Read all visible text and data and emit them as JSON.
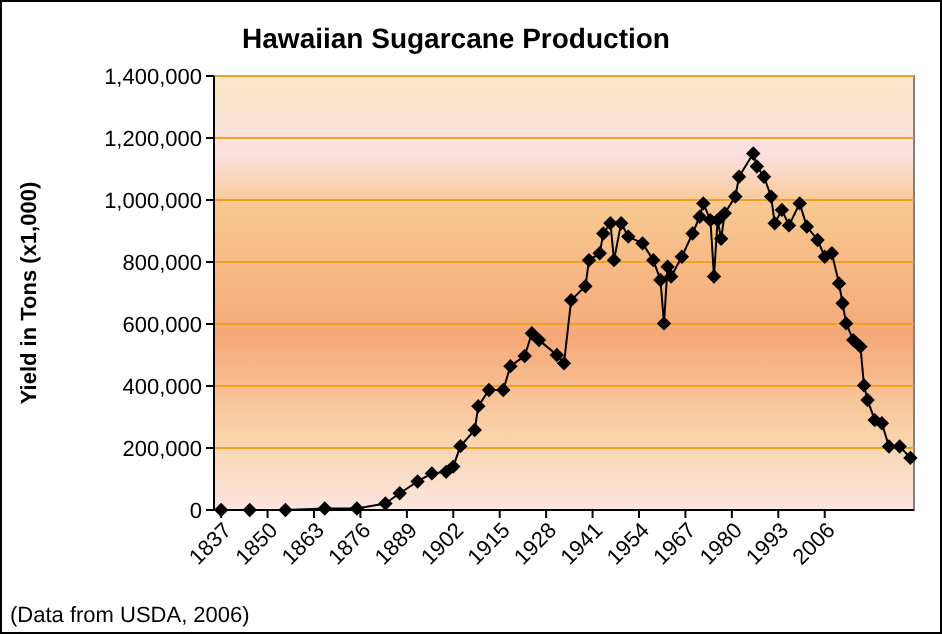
{
  "chart_data": {
    "type": "line",
    "title": "Hawaiian Sugarcane Production",
    "ylabel": "Yield in Tons (x1,000)",
    "annotations": [
      "(Data from USDA, 2006)"
    ],
    "series": [
      {
        "color": "#000000",
        "x": [
          1837,
          1845,
          1855,
          1866,
          1875,
          1883,
          1887,
          1892,
          1896,
          1900,
          1902,
          1904,
          1908,
          1909,
          1912,
          1916,
          1918,
          1922,
          1924,
          1926,
          1931,
          1933,
          1935,
          1939,
          1940,
          1943,
          1944,
          1946,
          1947,
          1949,
          1951,
          1955,
          1958,
          1960,
          1961,
          1962,
          1963,
          1966,
          1969,
          1971,
          1972,
          1974,
          1975,
          1976,
          1977,
          1978,
          1981,
          1982,
          1986,
          1987,
          1989,
          1991,
          1992,
          1994,
          1996,
          1999,
          2001,
          2004,
          2006,
          2008,
          2010,
          2011,
          2012,
          2014,
          2016,
          2017,
          2018,
          2020,
          2022,
          2024,
          2027,
          2030
        ],
        "values": [
          0,
          0,
          0,
          5000,
          5000,
          21000,
          54000,
          92000,
          118000,
          123000,
          140000,
          206000,
          258000,
          335000,
          387000,
          387000,
          464000,
          497000,
          570000,
          548000,
          500000,
          473000,
          677000,
          722000,
          806000,
          828000,
          892000,
          925000,
          806000,
          925000,
          882000,
          860000,
          806000,
          742000,
          602000,
          785000,
          753000,
          817000,
          892000,
          946000,
          989000,
          935000,
          753000,
          935000,
          875000,
          957000,
          1011000,
          1075000,
          1150000,
          1108000,
          1075000,
          1011000,
          925000,
          968000,
          918000,
          989000,
          914000,
          871000,
          817000,
          828000,
          731000,
          667000,
          602000,
          548000,
          527000,
          402000,
          355000,
          290000,
          280000,
          205000,
          205000,
          168000
        ]
      }
    ],
    "xlim": [
      1835,
      2031
    ],
    "xticks": [
      1837,
      1850,
      1863,
      1876,
      1889,
      1902,
      1915,
      1928,
      1941,
      1954,
      1967,
      1980,
      1993,
      2006
    ],
    "ylim": [
      0,
      1400000
    ],
    "yticks": [
      {
        "value": 0,
        "label": "0"
      },
      {
        "value": 200000,
        "label": "200,000"
      },
      {
        "value": 400000,
        "label": "400,000"
      },
      {
        "value": 600000,
        "label": "600,000"
      },
      {
        "value": 800000,
        "label": "800,000"
      },
      {
        "value": 1000000,
        "label": "1,000,000"
      },
      {
        "value": 1200000,
        "label": "1,200,000"
      },
      {
        "value": 1400000,
        "label": "1,400,000"
      }
    ],
    "grid": "y",
    "marker": "diamond"
  }
}
